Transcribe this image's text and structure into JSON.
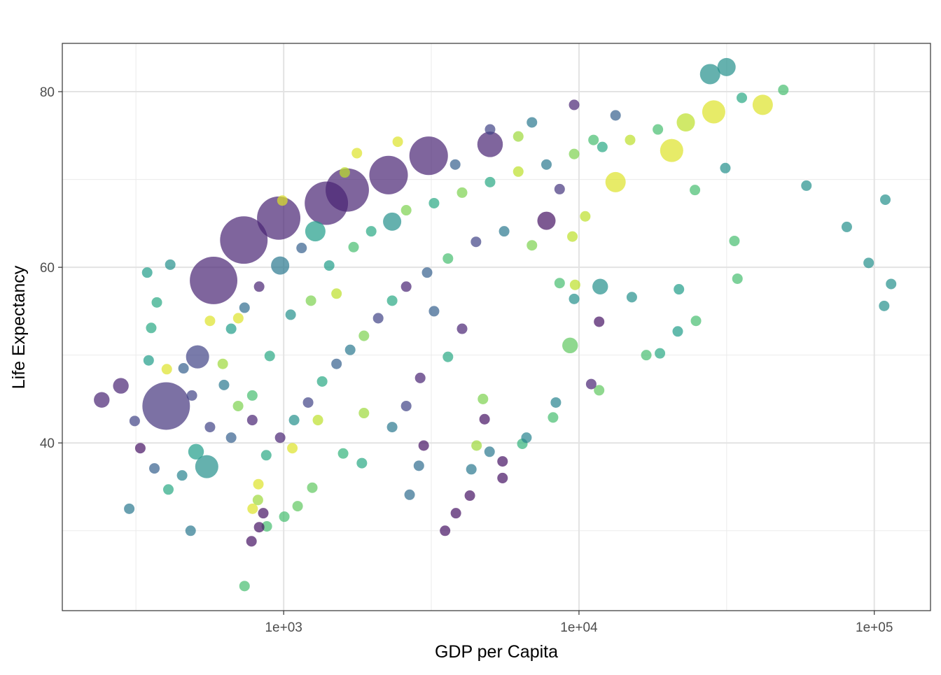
{
  "chart_data": {
    "type": "scatter",
    "title": "",
    "xlabel": "GDP per Capita",
    "ylabel": "Life Expectancy",
    "x_scale": "log10",
    "xlim": [
      178,
      155000
    ],
    "ylim": [
      20.9,
      85.5
    ],
    "x_ticks": [
      {
        "value": 1000,
        "label": "1e+03"
      },
      {
        "value": 10000,
        "label": "1e+04"
      },
      {
        "value": 100000,
        "label": "1e+05"
      }
    ],
    "x_minor": [
      316,
      3162,
      31623
    ],
    "y_ticks": [
      {
        "value": 40,
        "label": "40"
      },
      {
        "value": 60,
        "label": "60"
      },
      {
        "value": 80,
        "label": "80"
      }
    ],
    "y_minor": [
      30,
      50,
      70
    ],
    "grid": true,
    "legend": "none",
    "color_scale": "viridis",
    "point_opacity": 0.7,
    "point_fields": [
      "gdp_per_capita",
      "life_expectancy",
      "color_value",
      "size_value"
    ],
    "points": [
      [
        242,
        44.9,
        0.1,
        40
      ],
      [
        281,
        46.5,
        0.1,
        40
      ],
      [
        313,
        42.5,
        0.2,
        5
      ],
      [
        300,
        32.5,
        0.4,
        5
      ],
      [
        345,
        59.4,
        0.55,
        5
      ],
      [
        413,
        60.3,
        0.5,
        5
      ],
      [
        372,
        56,
        0.6,
        5
      ],
      [
        356,
        53.1,
        0.6,
        5
      ],
      [
        349,
        49.4,
        0.55,
        5
      ],
      [
        400,
        44.2,
        0.15,
        1000
      ],
      [
        484,
        30,
        0.4,
        5
      ],
      [
        737,
        23.7,
        0.7,
        5
      ],
      [
        778,
        28.8,
        0.05,
        5
      ],
      [
        853,
        32,
        0.05,
        5
      ],
      [
        1005,
        31.6,
        0.7,
        5
      ],
      [
        549,
        37.3,
        0.5,
        150
      ],
      [
        579,
        58.5,
        0.1,
        1000
      ],
      [
        733,
        63.1,
        0.1,
        1000
      ],
      [
        962,
        65.6,
        0.1,
        800
      ],
      [
        1395,
        67.3,
        0.1,
        800
      ],
      [
        1642,
        68.8,
        0.1,
        800
      ],
      [
        2266,
        70.5,
        0.1,
        600
      ],
      [
        3097,
        72.7,
        0.1,
        600
      ],
      [
        990,
        67.6,
        0.95,
        5
      ],
      [
        1770,
        73,
        0.95,
        5
      ],
      [
        2434,
        74.3,
        0.95,
        5
      ],
      [
        1610,
        70.8,
        0.9,
        5
      ],
      [
        5000,
        74,
        0.1,
        200
      ],
      [
        27800,
        82,
        0.5,
        100
      ],
      [
        31600,
        82.8,
        0.5,
        70
      ],
      [
        49200,
        80.2,
        0.7,
        5
      ],
      [
        58900,
        69.3,
        0.5,
        5
      ],
      [
        80700,
        64.6,
        0.5,
        5
      ],
      [
        109000,
        67.7,
        0.5,
        5
      ],
      [
        95700,
        60.5,
        0.5,
        5
      ],
      [
        114000,
        58.1,
        0.5,
        5
      ],
      [
        108000,
        55.6,
        0.5,
        5
      ],
      [
        33600,
        63,
        0.7,
        5
      ],
      [
        34400,
        58.7,
        0.7,
        5
      ],
      [
        31300,
        71.3,
        0.5,
        5
      ],
      [
        24700,
        68.8,
        0.7,
        5
      ],
      [
        21800,
        57.5,
        0.55,
        5
      ],
      [
        24900,
        53.9,
        0.7,
        5
      ],
      [
        21600,
        52.7,
        0.55,
        5
      ],
      [
        18800,
        50.2,
        0.6,
        5
      ],
      [
        16900,
        50,
        0.7,
        5
      ],
      [
        11700,
        46,
        0.75,
        5
      ],
      [
        11000,
        46.7,
        0.1,
        5
      ],
      [
        11700,
        53.8,
        0.05,
        5
      ],
      [
        11800,
        57.8,
        0.5,
        40
      ],
      [
        15100,
        56.6,
        0.5,
        5
      ],
      [
        9630,
        56.4,
        0.5,
        5
      ],
      [
        9330,
        51.1,
        0.75,
        40
      ],
      [
        8170,
        42.9,
        0.7,
        5
      ],
      [
        8350,
        44.6,
        0.45,
        5
      ],
      [
        9700,
        58,
        0.9,
        5
      ],
      [
        8600,
        58.2,
        0.7,
        5
      ],
      [
        9500,
        63.5,
        0.9,
        5
      ],
      [
        10500,
        65.8,
        0.9,
        5
      ],
      [
        6430,
        39.9,
        0.65,
        5
      ],
      [
        6640,
        40.6,
        0.45,
        5
      ],
      [
        4790,
        42.7,
        0.05,
        5
      ],
      [
        5510,
        37.9,
        0.05,
        5
      ],
      [
        5510,
        36,
        0.05,
        5
      ],
      [
        4270,
        34,
        0.05,
        5
      ],
      [
        3830,
        32,
        0.05,
        5
      ],
      [
        3520,
        30,
        0.05,
        5
      ],
      [
        4320,
        37,
        0.4,
        5
      ],
      [
        4980,
        39,
        0.4,
        5
      ],
      [
        4500,
        39.7,
        0.85,
        5
      ],
      [
        4730,
        45,
        0.8,
        5
      ],
      [
        2980,
        39.7,
        0.05,
        5
      ],
      [
        2670,
        34.1,
        0.35,
        5
      ],
      [
        2870,
        37.4,
        0.35,
        5
      ],
      [
        1840,
        37.7,
        0.6,
        5
      ],
      [
        1590,
        38.8,
        0.65,
        5
      ],
      [
        1250,
        34.9,
        0.75,
        5
      ],
      [
        1115,
        32.8,
        0.75,
        5
      ],
      [
        877,
        30.5,
        0.7,
        5
      ],
      [
        826,
        30.4,
        0.05,
        5
      ],
      [
        818,
        33.5,
        0.85,
        5
      ],
      [
        785,
        32.5,
        0.95,
        5
      ],
      [
        821,
        35.3,
        0.95,
        5
      ],
      [
        1070,
        39.4,
        0.95,
        5
      ],
      [
        1306,
        42.6,
        0.9,
        5
      ],
      [
        702,
        54.2,
        0.95,
        5
      ],
      [
        563,
        53.9,
        0.95,
        5
      ],
      [
        402,
        48.4,
        0.95,
        5
      ],
      [
        622,
        49,
        0.85,
        5
      ],
      [
        511,
        49.8,
        0.2,
        150
      ],
      [
        458,
        48.5,
        0.3,
        5
      ],
      [
        489,
        45.4,
        0.2,
        5
      ],
      [
        664,
        40.6,
        0.3,
        5
      ],
      [
        783,
        45.4,
        0.7,
        5
      ],
      [
        897,
        49.9,
        0.6,
        5
      ],
      [
        1056,
        54.6,
        0.5,
        5
      ],
      [
        1237,
        56.2,
        0.8,
        5
      ],
      [
        1426,
        60.2,
        0.55,
        5
      ],
      [
        1725,
        62.3,
        0.7,
        5
      ],
      [
        1979,
        64.1,
        0.6,
        5
      ],
      [
        2330,
        65.2,
        0.5,
        70
      ],
      [
        2600,
        66.5,
        0.8,
        5
      ],
      [
        3230,
        67.3,
        0.6,
        5
      ],
      [
        4020,
        68.5,
        0.8,
        5
      ],
      [
        5000,
        69.7,
        0.6,
        5
      ],
      [
        6230,
        70.9,
        0.9,
        5
      ],
      [
        7760,
        71.7,
        0.4,
        5
      ],
      [
        9630,
        72.9,
        0.8,
        5
      ],
      [
        12000,
        73.7,
        0.6,
        5
      ],
      [
        14900,
        74.5,
        0.9,
        5
      ],
      [
        18500,
        75.7,
        0.7,
        5
      ],
      [
        23000,
        76.5,
        0.9,
        70
      ],
      [
        28600,
        77.7,
        0.95,
        150
      ],
      [
        35600,
        79.3,
        0.6,
        5
      ],
      [
        41900,
        78.5,
        0.95,
        100
      ],
      [
        20600,
        73.3,
        0.95,
        150
      ],
      [
        13300,
        69.7,
        0.95,
        100
      ],
      [
        8600,
        68.9,
        0.15,
        5
      ],
      [
        7760,
        65.3,
        0.05,
        70
      ],
      [
        6930,
        62.5,
        0.8,
        5
      ],
      [
        5580,
        64.1,
        0.4,
        5
      ],
      [
        4480,
        62.9,
        0.2,
        5
      ],
      [
        3600,
        61,
        0.7,
        5
      ],
      [
        3060,
        59.4,
        0.3,
        5
      ],
      [
        2600,
        57.8,
        0.1,
        5
      ],
      [
        2330,
        56.2,
        0.6,
        5
      ],
      [
        2090,
        54.2,
        0.2,
        5
      ],
      [
        1870,
        52.2,
        0.8,
        5
      ],
      [
        1680,
        50.6,
        0.4,
        5
      ],
      [
        1510,
        49,
        0.3,
        5
      ],
      [
        1350,
        47,
        0.6,
        5
      ],
      [
        1210,
        44.6,
        0.2,
        5
      ],
      [
        1085,
        42.6,
        0.5,
        5
      ],
      [
        973,
        40.6,
        0.1,
        5
      ],
      [
        873,
        38.6,
        0.6,
        5
      ],
      [
        783,
        42.6,
        0.1,
        5
      ],
      [
        701,
        44.2,
        0.8,
        5
      ],
      [
        628,
        46.6,
        0.4,
        5
      ],
      [
        563,
        41.8,
        0.2,
        5
      ],
      [
        505,
        39,
        0.55,
        40
      ],
      [
        453,
        36.3,
        0.45,
        5
      ],
      [
        407,
        34.7,
        0.6,
        5
      ],
      [
        365,
        37.1,
        0.3,
        5
      ],
      [
        327,
        39.4,
        0.05,
        5
      ],
      [
        3230,
        55,
        0.3,
        5
      ],
      [
        4020,
        53,
        0.1,
        5
      ],
      [
        3600,
        49.8,
        0.6,
        5
      ],
      [
        2900,
        47.4,
        0.1,
        5
      ],
      [
        2600,
        44.2,
        0.2,
        5
      ],
      [
        2330,
        41.8,
        0.4,
        5
      ],
      [
        1870,
        43.4,
        0.85,
        5
      ],
      [
        1510,
        57,
        0.9,
        5
      ],
      [
        1280,
        64.1,
        0.55,
        100
      ],
      [
        1150,
        62.2,
        0.3,
        5
      ],
      [
        973,
        60.2,
        0.4,
        70
      ],
      [
        826,
        57.8,
        0.1,
        5
      ],
      [
        737,
        55.4,
        0.35,
        5
      ],
      [
        664,
        53,
        0.55,
        5
      ],
      [
        6230,
        74.9,
        0.85,
        5
      ],
      [
        6930,
        76.5,
        0.4,
        5
      ],
      [
        9630,
        78.5,
        0.1,
        5
      ],
      [
        13300,
        77.3,
        0.3,
        5
      ],
      [
        11200,
        74.5,
        0.7,
        5
      ],
      [
        5000,
        75.7,
        0.2,
        5
      ],
      [
        3810,
        71.7,
        0.3,
        5
      ]
    ]
  }
}
